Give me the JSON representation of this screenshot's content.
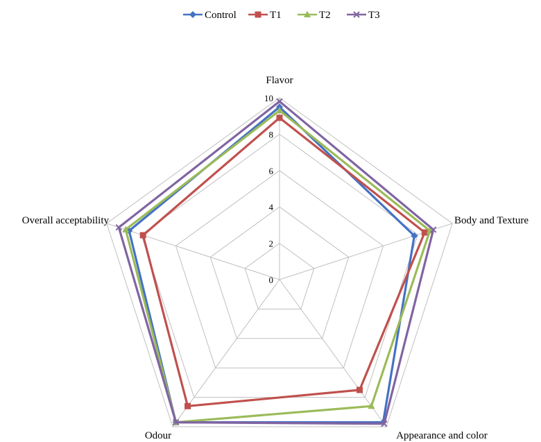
{
  "chart_data": {
    "type": "radar",
    "title": "",
    "categories": [
      "Flavor",
      "Body and Texture",
      "Appearance and color",
      "Odour",
      "Overall acceptability"
    ],
    "rlim": [
      0,
      10
    ],
    "ticks": [
      "0",
      "2",
      "4",
      "6",
      "8",
      "10"
    ],
    "grid": true,
    "legend_position": "top",
    "series": [
      {
        "name": "Control",
        "values": [
          9.5,
          7.8,
          9.7,
          9.7,
          8.7
        ],
        "color": "#4472C4",
        "marker": "diamond"
      },
      {
        "name": "T1",
        "values": [
          8.9,
          8.4,
          7.5,
          8.6,
          7.9
        ],
        "color": "#C0504D",
        "marker": "square"
      },
      {
        "name": "T2",
        "values": [
          9.3,
          8.7,
          8.6,
          9.7,
          8.9
        ],
        "color": "#9BBB59",
        "marker": "triangle"
      },
      {
        "name": "T3",
        "values": [
          9.8,
          8.9,
          9.8,
          9.7,
          9.3
        ],
        "color": "#8064A2",
        "marker": "x"
      }
    ]
  }
}
